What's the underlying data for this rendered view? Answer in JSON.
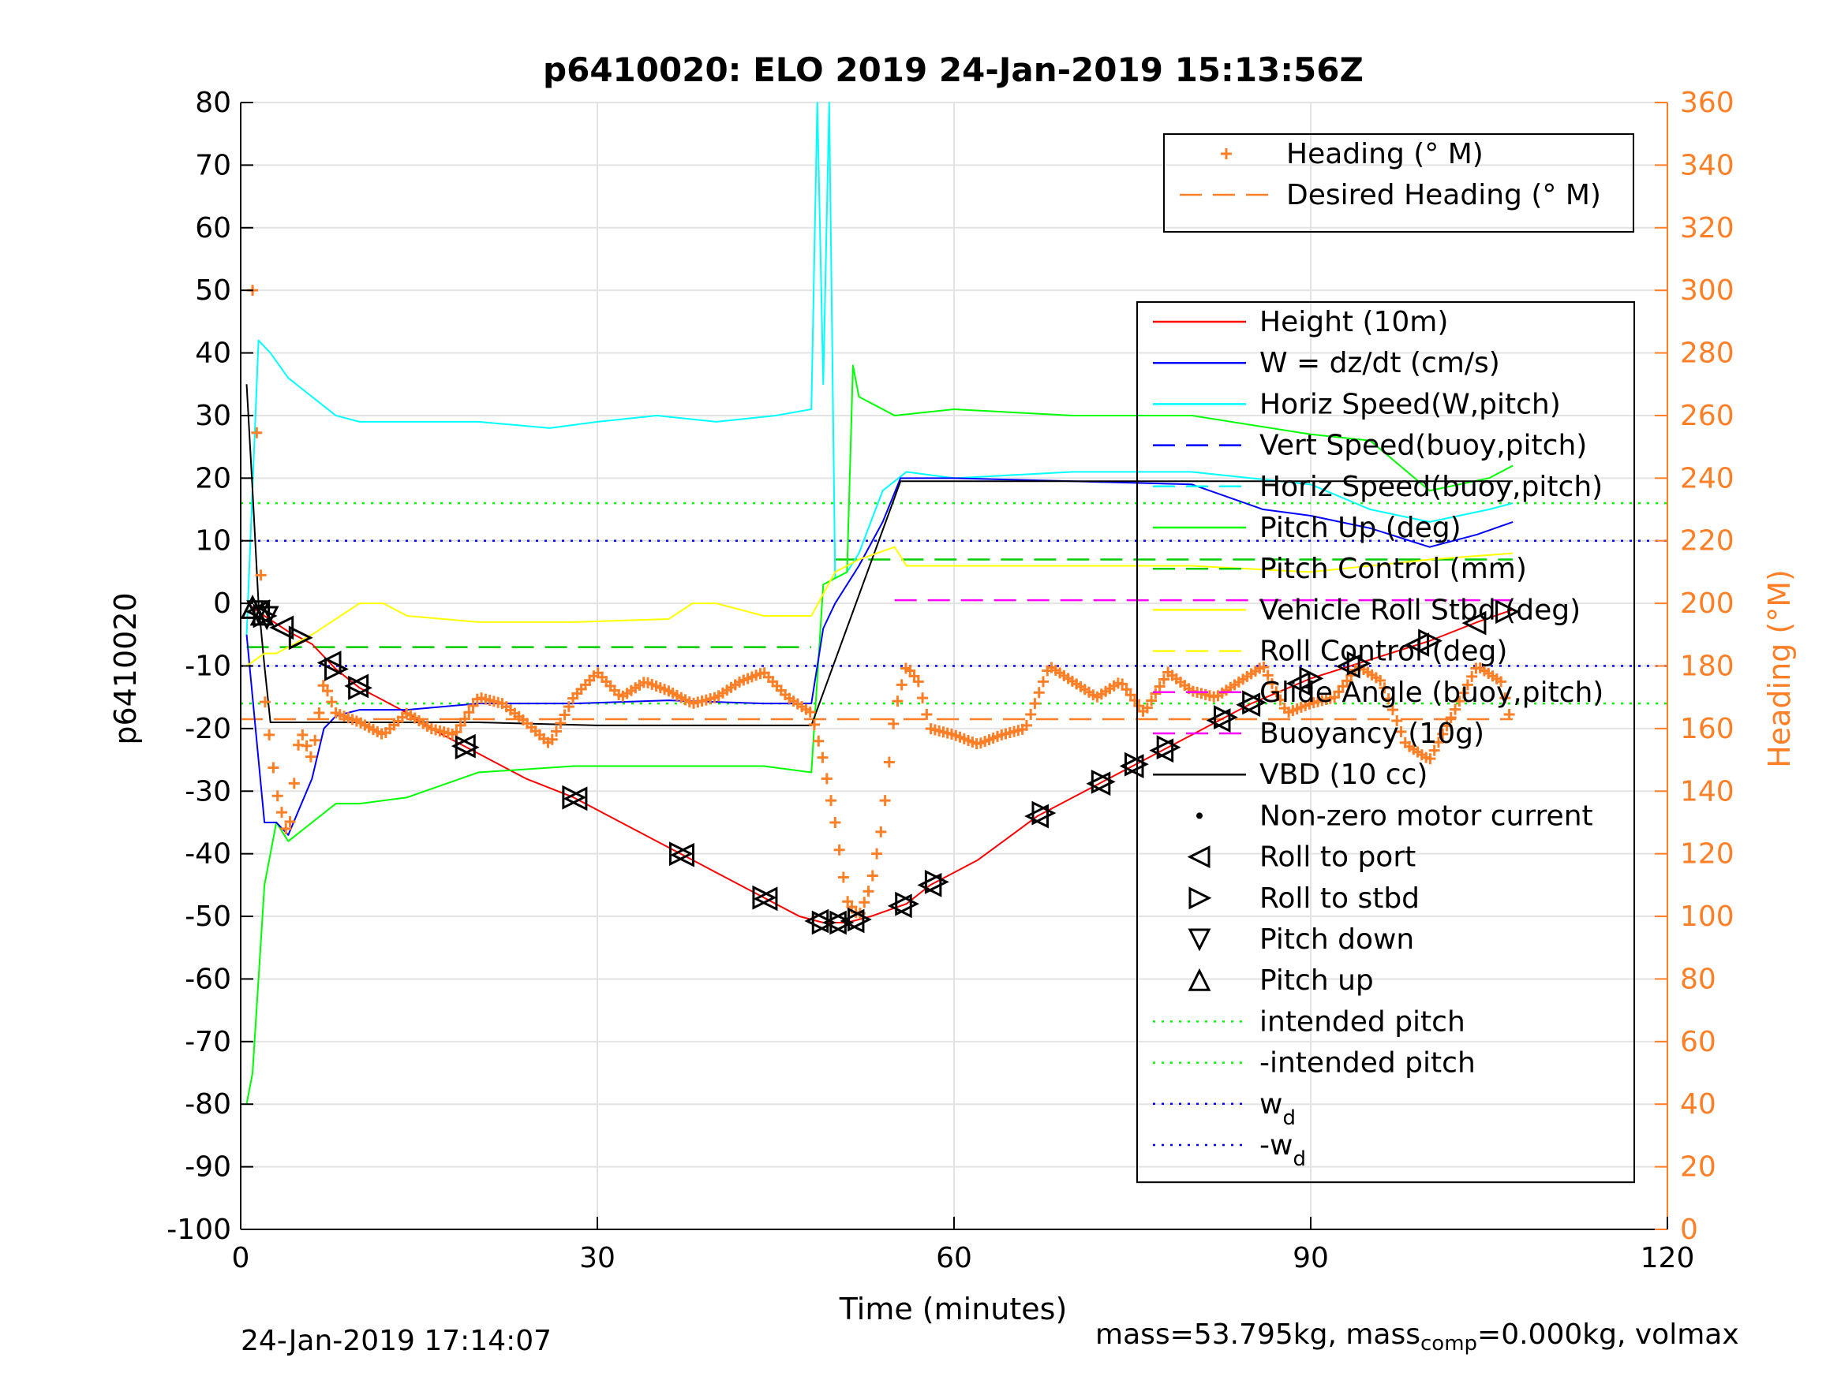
{
  "chart_data": {
    "type": "line",
    "title": "p6410020: ELO 2019 24-Jan-2019 15:13:56Z",
    "xlabel": "Time (minutes)",
    "ylabel": "p6410020",
    "ylabel_right": "Heading (°M)",
    "xlim": [
      0,
      120
    ],
    "ylim": [
      -100,
      80
    ],
    "ylim_right": [
      0,
      360
    ],
    "x_ticks": [
      "0",
      "30",
      "60",
      "90",
      "120"
    ],
    "y_ticks": [
      "80",
      "70",
      "60",
      "50",
      "40",
      "30",
      "20",
      "10",
      "0",
      "-10",
      "-20",
      "-30",
      "-40",
      "-50",
      "-60",
      "-70",
      "-80",
      "-90",
      "-100"
    ],
    "y_right_ticks": [
      "360",
      "340",
      "320",
      "300",
      "280",
      "260",
      "240",
      "220",
      "200",
      "180",
      "160",
      "140",
      "120",
      "100",
      "80",
      "60",
      "40",
      "20",
      "0"
    ],
    "grid": true,
    "colors": {
      "height": "#ff0000",
      "w": "#0000ff",
      "horiz_speed_w": "#00ffff",
      "vert_speed": "#0000ff",
      "horiz_speed_buoy": "#00ffff",
      "pitch_up": "#00ff00",
      "pitch_control": "#00cc00",
      "roll_ctrl": "#ffff00",
      "glide": "#ff00ff",
      "vbd": "#000000",
      "heading": "#ff7f27",
      "intended": "#00ff00",
      "wd": "#0000ff"
    },
    "series": [
      {
        "key": "height",
        "x": [
          0.5,
          2,
          4,
          6,
          8,
          10,
          12,
          14,
          16,
          18,
          20,
          24,
          28,
          32,
          36,
          40,
          44,
          47,
          49,
          51,
          53,
          56,
          58,
          62,
          67,
          72,
          76,
          80,
          85,
          90,
          95,
          100,
          104,
          107
        ],
        "values": [
          0,
          -2,
          -4.5,
          -6.5,
          -10.5,
          -13.5,
          -15.5,
          -17.5,
          -20,
          -22,
          -24,
          -28,
          -31,
          -35,
          -39,
          -43,
          -47,
          -50,
          -51,
          -51,
          -50,
          -48,
          -45,
          -41,
          -34,
          -29,
          -25,
          -21,
          -16,
          -12,
          -9,
          -6,
          -3,
          -1
        ]
      },
      {
        "key": "horiz_speed_w",
        "x": [
          0.5,
          1.5,
          2.5,
          4,
          6,
          8,
          10,
          14,
          20,
          26,
          30,
          35,
          40,
          45,
          48,
          48.5,
          49,
          49.5,
          50,
          51,
          52,
          54,
          56,
          60,
          70,
          80,
          90,
          95,
          100,
          105,
          107
        ],
        "values": [
          -5,
          42,
          40,
          36,
          33,
          30,
          29,
          29,
          29,
          28,
          29,
          30,
          29,
          30,
          31,
          80,
          35,
          80,
          4,
          5,
          8,
          18,
          21,
          20,
          21,
          21,
          19,
          15,
          13,
          15,
          16
        ]
      },
      {
        "key": "pitch_up",
        "x": [
          0.5,
          1,
          2,
          3,
          4,
          6,
          8,
          10,
          14,
          20,
          28,
          36,
          44,
          48,
          49,
          51,
          51.5,
          52,
          53,
          55,
          60,
          70,
          80,
          90,
          95,
          100,
          105,
          107
        ],
        "values": [
          -80,
          -75,
          -45,
          -35,
          -38,
          -35,
          -32,
          -32,
          -31,
          -27,
          -26,
          -26,
          -26,
          -27,
          3,
          5,
          38,
          33,
          32,
          30,
          31,
          30,
          30,
          27,
          26,
          18,
          20,
          22
        ]
      },
      {
        "key": "w",
        "x": [
          0.5,
          2,
          3,
          4,
          6,
          7,
          8,
          10,
          14,
          20,
          28,
          36,
          44,
          48,
          49,
          50,
          52,
          54,
          55.5,
          60,
          70,
          80,
          86,
          90,
          95,
          100,
          104,
          107
        ],
        "values": [
          -5,
          -35,
          -35,
          -37,
          -28,
          -20,
          -18,
          -17,
          -17,
          -16,
          -16,
          -15.5,
          -16,
          -16,
          -4,
          0,
          6,
          13,
          20,
          20,
          19.5,
          19,
          15,
          14,
          12,
          9,
          11,
          13
        ]
      },
      {
        "key": "vbd",
        "x": [
          0.5,
          1,
          1.5,
          2,
          2.5,
          10,
          20,
          30,
          40,
          48,
          55.5,
          60,
          70,
          80,
          90,
          100,
          107
        ],
        "values": [
          35,
          18,
          0,
          -10,
          -19,
          -19,
          -19,
          -19.5,
          -19.5,
          -19.5,
          19.5,
          19.5,
          19.5,
          19.5,
          19.5,
          19.5,
          19.5
        ]
      },
      {
        "key": "roll_ctrl",
        "x": [
          0.5,
          2,
          3,
          6,
          10,
          12,
          14,
          20,
          28,
          36,
          38,
          40,
          44,
          48,
          50,
          52,
          55,
          56,
          60,
          70,
          80,
          90,
          100,
          107
        ],
        "values": [
          -10,
          -8,
          -8,
          -5,
          0,
          0,
          -2,
          -3,
          -3,
          -2.5,
          0,
          0,
          -2,
          -2,
          5,
          7,
          9,
          6,
          6,
          6,
          6,
          5,
          7,
          8
        ]
      },
      {
        "key": "heading",
        "x": [
          1,
          2,
          3,
          4,
          5,
          6,
          7,
          8,
          10,
          12,
          14,
          16,
          18,
          20,
          22,
          24,
          26,
          28,
          30,
          32,
          34,
          36,
          38,
          40,
          42,
          44,
          46,
          48,
          49,
          50,
          51,
          52,
          53,
          54,
          55,
          56,
          57,
          58,
          60,
          62,
          64,
          66,
          68,
          70,
          72,
          74,
          76,
          78,
          80,
          82,
          84,
          86,
          88,
          90,
          92,
          94,
          96,
          98,
          100,
          102,
          104,
          106,
          107
        ],
        "values": [
          300,
          170,
          140,
          125,
          160,
          150,
          175,
          165,
          162,
          158,
          165,
          160,
          158,
          170,
          168,
          162,
          155,
          170,
          178,
          170,
          175,
          172,
          168,
          170,
          175,
          178,
          170,
          165,
          150,
          130,
          105,
          100,
          110,
          130,
          165,
          180,
          175,
          160,
          158,
          155,
          158,
          160,
          180,
          175,
          170,
          175,
          165,
          178,
          172,
          170,
          175,
          180,
          165,
          168,
          170,
          180,
          175,
          155,
          150,
          165,
          180,
          175,
          160
        ]
      }
    ],
    "reference_lines": [
      {
        "key": "intended_pitch",
        "value": 16
      },
      {
        "key": "neg_intended_pitch",
        "value": -16
      },
      {
        "key": "w_d",
        "value": 10
      },
      {
        "key": "neg_w_d",
        "value": -10
      },
      {
        "key": "pitch_control_dive",
        "value": -7,
        "x": [
          0.5,
          48
        ]
      },
      {
        "key": "pitch_control_climb",
        "value": 7,
        "x": [
          50,
          107
        ]
      },
      {
        "key": "glide_climb",
        "value": 0.5,
        "x": [
          55,
          107
        ]
      },
      {
        "key": "desired_heading",
        "value_right": 163,
        "x": [
          0,
          107
        ]
      }
    ],
    "markers": {
      "roll_to_port_x": [
        1.5,
        3.5,
        7.5,
        9.8,
        18.8,
        28.2,
        37.2,
        44.2,
        48.5,
        50,
        51.5,
        55.5,
        58,
        67,
        72.2,
        75,
        77.5,
        82.3,
        84.8,
        89,
        93.2,
        99,
        103.8
      ],
      "roll_to_stbd_x": [
        2,
        5,
        8,
        10,
        19,
        28,
        37,
        44,
        49,
        50.5,
        52,
        56,
        58.5,
        67.5,
        72.5,
        75.3,
        78,
        82.8,
        85.2,
        90,
        94,
        100,
        106.5
      ],
      "pitch_down_x": [
        1.5,
        2.2
      ],
      "pitch_up_x": [
        1,
        1.8
      ]
    },
    "legend_heading": {
      "placement": "top-right",
      "entries": [
        {
          "symbol": "plus",
          "color": "#ff7f27",
          "label": "Heading (° M)"
        },
        {
          "symbol": "dash",
          "color": "#ff7f27",
          "label": "Desired Heading (° M)"
        }
      ]
    },
    "legend_main": {
      "placement": "right",
      "entries": [
        {
          "symbol": "line",
          "color": "#ff0000",
          "label": "Height (10m)"
        },
        {
          "symbol": "line",
          "color": "#0000ff",
          "label": "W = dz/dt (cm/s)"
        },
        {
          "symbol": "line",
          "color": "#00ffff",
          "label": "Horiz Speed(W,pitch)"
        },
        {
          "symbol": "dash",
          "color": "#0000ff",
          "label": "Vert Speed(buoy,pitch)"
        },
        {
          "symbol": "dash",
          "color": "#00ffff",
          "label": "Horiz Speed(buoy,pitch)"
        },
        {
          "symbol": "line",
          "color": "#00ff00",
          "label": "Pitch Up (deg)"
        },
        {
          "symbol": "dash",
          "color": "#00cc00",
          "label": "Pitch Control (mm)"
        },
        {
          "symbol": "line",
          "color": "#ffff00",
          "label": "Vehicle Roll Stbd (deg)"
        },
        {
          "symbol": "dash",
          "color": "#ffff00",
          "label": "Roll Control (deg)"
        },
        {
          "symbol": "dash",
          "color": "#ff00ff",
          "label": "Glide Angle (buoy,pitch)"
        },
        {
          "symbol": "dash",
          "color": "#ff00ff",
          "label": "Buoyancy (10g)"
        },
        {
          "symbol": "line",
          "color": "#000000",
          "label": "VBD (10 cc)"
        },
        {
          "symbol": "dot",
          "color": "#000000",
          "label": "Non-zero motor current"
        },
        {
          "symbol": "tri-left",
          "color": "#000000",
          "label": "Roll to port"
        },
        {
          "symbol": "tri-right",
          "color": "#000000",
          "label": "Roll to stbd"
        },
        {
          "symbol": "tri-down",
          "color": "#000000",
          "label": "Pitch down"
        },
        {
          "symbol": "tri-up",
          "color": "#000000",
          "label": "Pitch up"
        },
        {
          "symbol": "dot-line",
          "color": "#00ff00",
          "label": "intended pitch"
        },
        {
          "symbol": "dot-line",
          "color": "#00ff00",
          "label": "-intended pitch"
        },
        {
          "symbol": "dot-line",
          "color": "#0000ff",
          "label": "w",
          "sub": "d"
        },
        {
          "symbol": "dot-line",
          "color": "#0000ff",
          "label": "-w",
          "sub": "d"
        }
      ]
    }
  },
  "footer": {
    "timestamp": "24-Jan-2019 17:14:07",
    "mass_prefix": "mass=53.795kg, mass",
    "mass_sub": "comp",
    "mass_suffix": "=0.000kg, volmax"
  }
}
